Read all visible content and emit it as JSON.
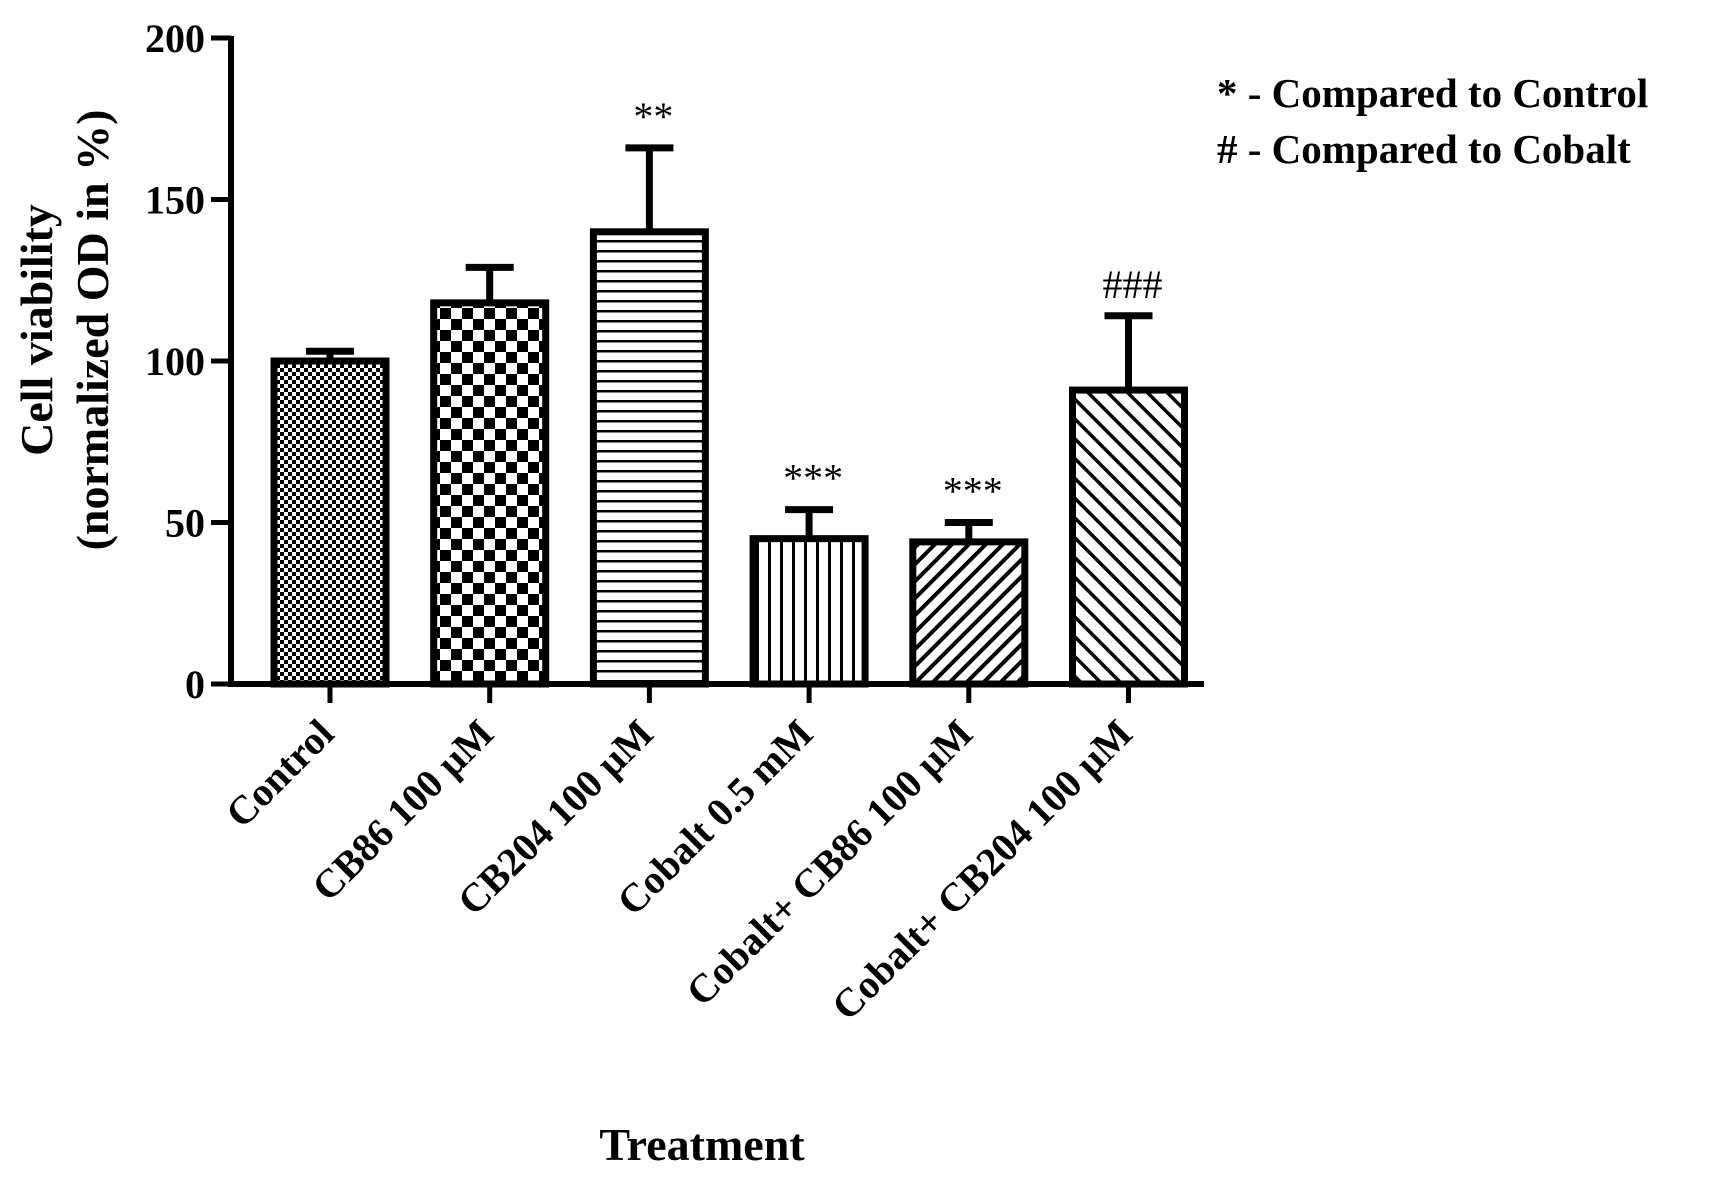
{
  "chart_data": {
    "type": "bar",
    "categories": [
      "Control",
      "CB86 100 µM",
      "CB204 100 µM",
      "Cobalt 0.5 mM",
      "Cobalt+ CB86 100 µM",
      "Cobalt+ CB204 100 µM"
    ],
    "values": [
      100,
      118,
      140,
      45,
      44,
      91
    ],
    "errors": [
      3,
      11,
      26,
      9,
      6,
      23
    ],
    "significance": [
      "",
      "",
      "**",
      "***",
      "***",
      "###"
    ],
    "patterns": [
      "fine-check",
      "checker",
      "horizontal",
      "vertical",
      "diagonal-dense",
      "diagonal"
    ],
    "xlabel": "Treatment",
    "ylabel_line1": "Cell viability",
    "ylabel_line2": "(normalized OD in %)",
    "ylim": [
      0,
      200
    ],
    "yticks": [
      "0",
      "50",
      "100",
      "150",
      "200"
    ],
    "grid": false,
    "legend": {
      "placement": "top-right",
      "entries": [
        "* - Compared to Control",
        "# - Compared to Cobalt"
      ]
    },
    "colors": {
      "bar_stroke": "#000000",
      "pattern": "#000000",
      "background": "#ffffff"
    }
  }
}
